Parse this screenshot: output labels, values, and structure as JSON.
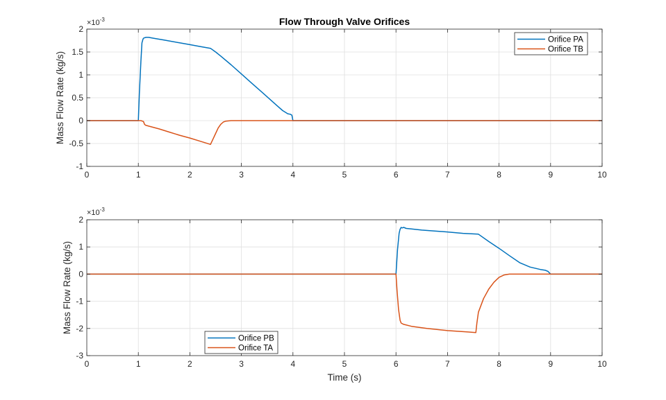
{
  "figure": {
    "background": "#ffffff",
    "axes_color": "#262626",
    "grid_color": "#dfdfdf"
  },
  "chart_data": [
    {
      "type": "line",
      "title": "Flow Through Valve Orifices",
      "xlabel": "",
      "ylabel": "Mass Flow Rate (kg/s)",
      "y_multiplier": "×10",
      "y_multiplier_exp": "-3",
      "xlim": [
        0,
        10
      ],
      "ylim": [
        -1,
        2
      ],
      "xticks": [
        0,
        1,
        2,
        3,
        4,
        5,
        6,
        7,
        8,
        9,
        10
      ],
      "xticklabels": [
        "0",
        "1",
        "2",
        "3",
        "4",
        "5",
        "6",
        "7",
        "8",
        "9",
        "10"
      ],
      "yticks": [
        -1,
        -0.5,
        0,
        0.5,
        1,
        1.5,
        2
      ],
      "yticklabels": [
        "-1",
        "-0.5",
        "0",
        "0.5",
        "1",
        "1.5",
        "2"
      ],
      "grid": true,
      "legend_position": "top-right",
      "series": [
        {
          "name": "Orifice PA",
          "color": "#0072BD",
          "x": [
            0,
            1.0,
            1.02,
            1.05,
            1.07,
            1.09,
            1.1,
            1.12,
            1.15,
            1.2,
            1.3,
            1.5,
            1.8,
            2.0,
            2.2,
            2.4,
            2.5,
            2.6,
            2.8,
            3.0,
            3.2,
            3.4,
            3.6,
            3.7,
            3.8,
            3.9,
            3.95,
            3.98,
            4.0,
            4.5,
            5,
            6,
            7,
            8,
            9,
            10
          ],
          "y": [
            0,
            0,
            0.6,
            1.3,
            1.7,
            1.78,
            1.8,
            1.81,
            1.82,
            1.82,
            1.8,
            1.76,
            1.7,
            1.66,
            1.62,
            1.58,
            1.5,
            1.41,
            1.22,
            1.02,
            0.82,
            0.62,
            0.42,
            0.32,
            0.22,
            0.15,
            0.14,
            0.12,
            0.0,
            0,
            0,
            0,
            0,
            0,
            0,
            0
          ]
        },
        {
          "name": "Orifice TB",
          "color": "#D95319",
          "x": [
            0,
            1.0,
            1.05,
            1.1,
            1.12,
            1.14,
            1.2,
            1.4,
            1.6,
            1.8,
            2.0,
            2.2,
            2.4,
            2.45,
            2.5,
            2.55,
            2.6,
            2.65,
            2.7,
            2.8,
            3.0,
            4,
            5,
            6,
            7,
            8,
            9,
            10
          ],
          "y": [
            0,
            0,
            0,
            -0.02,
            -0.08,
            -0.1,
            -0.12,
            -0.18,
            -0.25,
            -0.32,
            -0.38,
            -0.45,
            -0.52,
            -0.4,
            -0.28,
            -0.16,
            -0.08,
            -0.03,
            -0.01,
            0,
            0,
            0,
            0,
            0,
            0,
            0,
            0,
            0
          ]
        }
      ]
    },
    {
      "type": "line",
      "title": "",
      "xlabel": "Time (s)",
      "ylabel": "Mass Flow Rate (kg/s)",
      "y_multiplier": "×10",
      "y_multiplier_exp": "-3",
      "xlim": [
        0,
        10
      ],
      "ylim": [
        -3,
        2
      ],
      "xticks": [
        0,
        1,
        2,
        3,
        4,
        5,
        6,
        7,
        8,
        9,
        10
      ],
      "xticklabels": [
        "0",
        "1",
        "2",
        "3",
        "4",
        "5",
        "6",
        "7",
        "8",
        "9",
        "10"
      ],
      "yticks": [
        -3,
        -2,
        -1,
        0,
        1,
        2
      ],
      "yticklabels": [
        "-3",
        "-2",
        "-1",
        "0",
        "1",
        "2"
      ],
      "grid": true,
      "legend_position": "bottom-left",
      "series": [
        {
          "name": "Orifice PB",
          "color": "#0072BD",
          "x": [
            0,
            1,
            2,
            3,
            4,
            5,
            6.0,
            6.03,
            6.06,
            6.08,
            6.1,
            6.12,
            6.15,
            6.2,
            6.3,
            6.5,
            7.0,
            7.3,
            7.5,
            7.6,
            7.8,
            8.0,
            8.2,
            8.4,
            8.6,
            8.8,
            8.9,
            8.95,
            9.0,
            9.5,
            10
          ],
          "y": [
            0,
            0,
            0,
            0,
            0,
            0,
            0,
            0.9,
            1.5,
            1.65,
            1.72,
            1.7,
            1.72,
            1.68,
            1.66,
            1.62,
            1.55,
            1.5,
            1.48,
            1.47,
            1.2,
            0.95,
            0.68,
            0.42,
            0.26,
            0.17,
            0.14,
            0.1,
            0,
            0,
            0
          ]
        },
        {
          "name": "Orifice TA",
          "color": "#D95319",
          "x": [
            0,
            1,
            2,
            3,
            4,
            5,
            6.0,
            6.02,
            6.05,
            6.08,
            6.1,
            6.15,
            6.3,
            6.6,
            7.0,
            7.4,
            7.55,
            7.57,
            7.6,
            7.7,
            7.8,
            7.9,
            8.0,
            8.1,
            8.2,
            9,
            10
          ],
          "y": [
            0,
            0,
            0,
            0,
            0,
            0,
            0,
            -0.6,
            -1.3,
            -1.7,
            -1.8,
            -1.85,
            -1.92,
            -2.0,
            -2.08,
            -2.13,
            -2.15,
            -1.8,
            -1.4,
            -0.9,
            -0.55,
            -0.3,
            -0.12,
            -0.03,
            0,
            0,
            0
          ]
        }
      ]
    }
  ]
}
